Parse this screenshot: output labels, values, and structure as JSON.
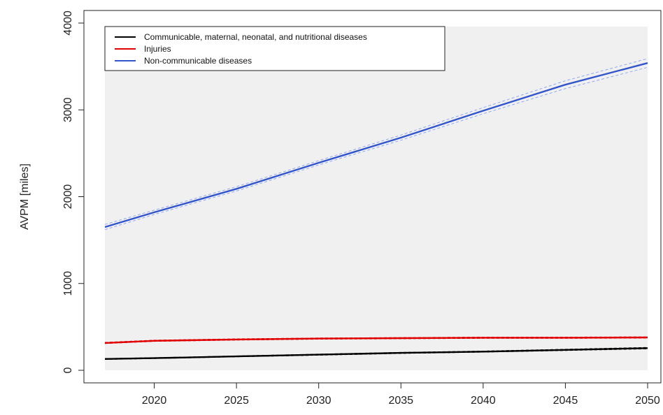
{
  "chart_data": {
    "type": "line",
    "title": "",
    "xlabel": "",
    "ylabel": "AVPM [miles]",
    "xlim": [
      2017,
      2050
    ],
    "ylim": [
      0,
      4000
    ],
    "x_ticks": [
      "2020",
      "2025",
      "2030",
      "2035",
      "2040",
      "2045",
      "2050"
    ],
    "y_ticks": [
      "0",
      "1000",
      "2000",
      "3000",
      "4000"
    ],
    "legend_position": "top-left",
    "plot_background": "#f0f0f0",
    "series": [
      {
        "name": "Communicable, maternal, neonatal, and nutritional diseases",
        "color": "#000000",
        "x": [
          2017,
          2020,
          2025,
          2030,
          2035,
          2040,
          2045,
          2050
        ],
        "y": [
          130,
          140,
          160,
          180,
          200,
          215,
          235,
          255
        ],
        "lower": [
          125,
          135,
          155,
          174,
          194,
          209,
          228,
          247
        ],
        "upper": [
          135,
          145,
          165,
          186,
          206,
          221,
          242,
          263
        ]
      },
      {
        "name": "Injuries",
        "color": "#e00000",
        "x": [
          2017,
          2020,
          2025,
          2030,
          2035,
          2040,
          2045,
          2050
        ],
        "y": [
          315,
          340,
          355,
          365,
          370,
          375,
          375,
          378
        ],
        "lower": [
          308,
          333,
          348,
          358,
          363,
          368,
          368,
          371
        ],
        "upper": [
          322,
          347,
          362,
          372,
          377,
          382,
          382,
          385
        ]
      },
      {
        "name": "Non-communicable diseases",
        "color": "#3355cc",
        "band_color": "#8fa8f0",
        "x": [
          2017,
          2020,
          2025,
          2030,
          2035,
          2040,
          2045,
          2050
        ],
        "y": [
          1650,
          1820,
          2090,
          2390,
          2680,
          2990,
          3290,
          3540
        ],
        "lower": [
          1620,
          1795,
          2065,
          2365,
          2650,
          2955,
          3245,
          3490
        ],
        "upper": [
          1680,
          1845,
          2115,
          2415,
          2710,
          3025,
          3335,
          3590
        ]
      }
    ]
  }
}
